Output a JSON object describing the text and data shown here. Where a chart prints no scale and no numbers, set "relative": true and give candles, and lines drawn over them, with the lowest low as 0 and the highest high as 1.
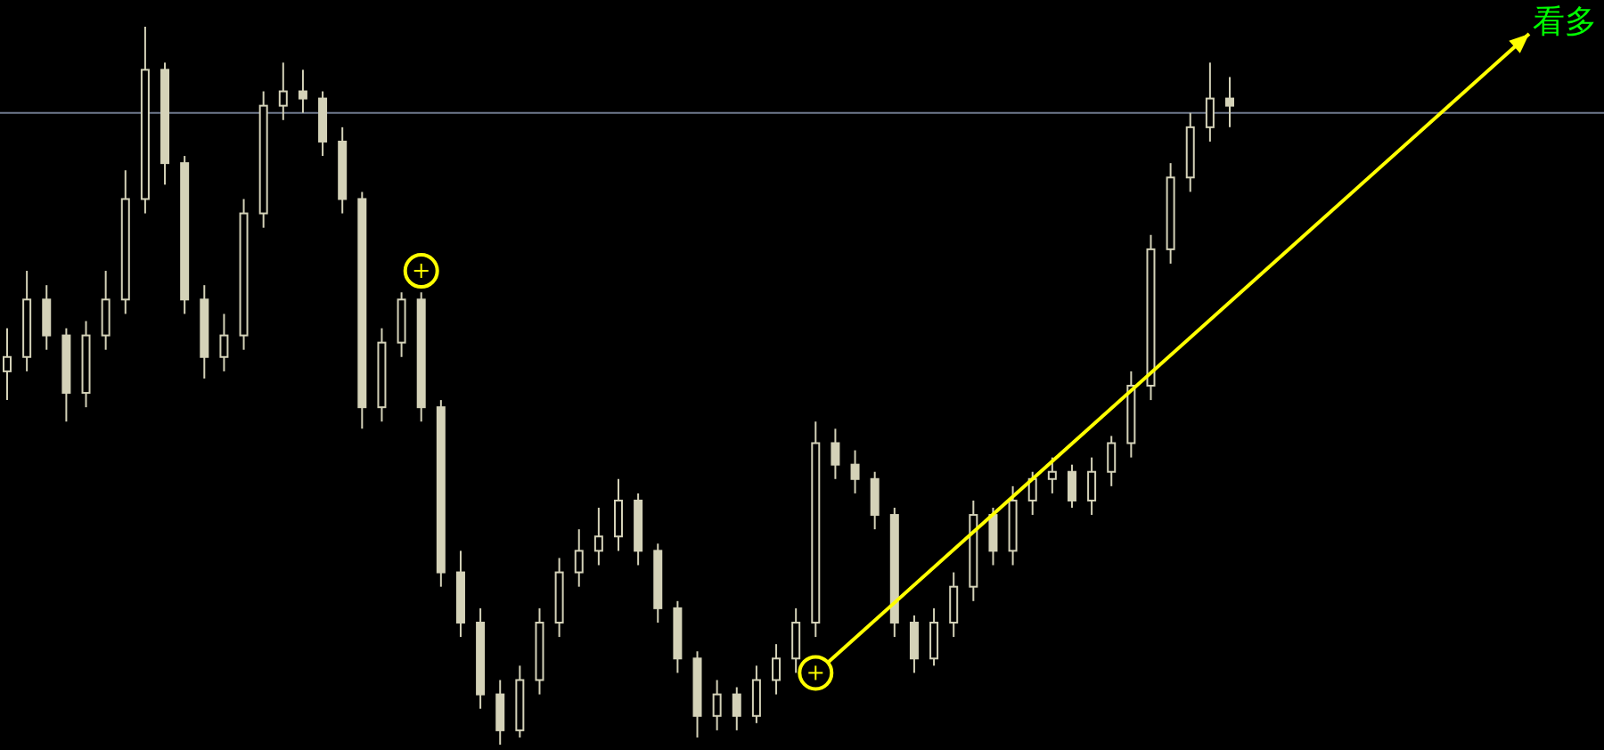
{
  "chart_data": {
    "type": "candlestick",
    "relative": true,
    "color": "#d4d2b8",
    "categories": [
      null,
      null,
      null,
      null,
      null,
      null,
      null,
      null,
      null,
      null,
      null,
      null,
      null,
      null,
      null,
      null,
      null,
      null,
      null,
      null,
      null,
      null,
      null,
      null,
      null,
      null,
      null,
      null,
      null,
      null,
      null,
      null,
      null,
      null,
      null,
      null,
      null,
      null,
      null,
      null,
      null,
      null,
      null,
      null,
      null,
      null,
      null,
      null,
      null,
      null,
      null,
      null,
      null,
      null,
      null,
      null,
      null,
      null,
      null,
      null,
      null,
      null,
      null
    ],
    "ohlc": [
      [
        0.52,
        0.58,
        0.48,
        0.54
      ],
      [
        0.54,
        0.66,
        0.52,
        0.62
      ],
      [
        0.62,
        0.64,
        0.55,
        0.57
      ],
      [
        0.57,
        0.58,
        0.45,
        0.49
      ],
      [
        0.49,
        0.59,
        0.47,
        0.57
      ],
      [
        0.57,
        0.66,
        0.55,
        0.62
      ],
      [
        0.62,
        0.8,
        0.6,
        0.76
      ],
      [
        0.76,
        1.0,
        0.74,
        0.94
      ],
      [
        0.94,
        0.95,
        0.78,
        0.81
      ],
      [
        0.81,
        0.82,
        0.6,
        0.62
      ],
      [
        0.62,
        0.64,
        0.51,
        0.54
      ],
      [
        0.54,
        0.6,
        0.52,
        0.57
      ],
      [
        0.57,
        0.76,
        0.55,
        0.74
      ],
      [
        0.74,
        0.91,
        0.72,
        0.89
      ],
      [
        0.89,
        0.95,
        0.87,
        0.91
      ],
      [
        0.91,
        0.94,
        0.88,
        0.9
      ],
      [
        0.9,
        0.91,
        0.82,
        0.84
      ],
      [
        0.84,
        0.86,
        0.74,
        0.76
      ],
      [
        0.76,
        0.77,
        0.44,
        0.47
      ],
      [
        0.47,
        0.58,
        0.45,
        0.56
      ],
      [
        0.56,
        0.63,
        0.54,
        0.62
      ],
      [
        0.62,
        0.63,
        0.45,
        0.47
      ],
      [
        0.47,
        0.48,
        0.22,
        0.24
      ],
      [
        0.24,
        0.27,
        0.15,
        0.17
      ],
      [
        0.17,
        0.19,
        0.05,
        0.07
      ],
      [
        0.07,
        0.09,
        0.0,
        0.02
      ],
      [
        0.02,
        0.11,
        0.01,
        0.09
      ],
      [
        0.09,
        0.19,
        0.07,
        0.17
      ],
      [
        0.17,
        0.26,
        0.15,
        0.24
      ],
      [
        0.24,
        0.3,
        0.22,
        0.27
      ],
      [
        0.27,
        0.33,
        0.25,
        0.29
      ],
      [
        0.29,
        0.37,
        0.27,
        0.34
      ],
      [
        0.34,
        0.35,
        0.25,
        0.27
      ],
      [
        0.27,
        0.28,
        0.17,
        0.19
      ],
      [
        0.19,
        0.2,
        0.1,
        0.12
      ],
      [
        0.12,
        0.13,
        0.01,
        0.04
      ],
      [
        0.04,
        0.09,
        0.02,
        0.07
      ],
      [
        0.07,
        0.08,
        0.02,
        0.04
      ],
      [
        0.04,
        0.11,
        0.03,
        0.09
      ],
      [
        0.09,
        0.14,
        0.07,
        0.12
      ],
      [
        0.12,
        0.19,
        0.1,
        0.17
      ],
      [
        0.17,
        0.45,
        0.15,
        0.42
      ],
      [
        0.42,
        0.44,
        0.37,
        0.39
      ],
      [
        0.39,
        0.41,
        0.35,
        0.37
      ],
      [
        0.37,
        0.38,
        0.3,
        0.32
      ],
      [
        0.32,
        0.33,
        0.15,
        0.17
      ],
      [
        0.17,
        0.18,
        0.1,
        0.12
      ],
      [
        0.12,
        0.19,
        0.11,
        0.17
      ],
      [
        0.17,
        0.24,
        0.15,
        0.22
      ],
      [
        0.22,
        0.34,
        0.2,
        0.32
      ],
      [
        0.32,
        0.33,
        0.25,
        0.27
      ],
      [
        0.27,
        0.36,
        0.25,
        0.34
      ],
      [
        0.34,
        0.38,
        0.32,
        0.37
      ],
      [
        0.37,
        0.4,
        0.35,
        0.38
      ],
      [
        0.38,
        0.39,
        0.33,
        0.34
      ],
      [
        0.34,
        0.4,
        0.32,
        0.38
      ],
      [
        0.38,
        0.43,
        0.36,
        0.42
      ],
      [
        0.42,
        0.52,
        0.4,
        0.5
      ],
      [
        0.5,
        0.71,
        0.48,
        0.69
      ],
      [
        0.69,
        0.81,
        0.67,
        0.79
      ],
      [
        0.79,
        0.88,
        0.77,
        0.86
      ],
      [
        0.86,
        0.95,
        0.84,
        0.9
      ],
      [
        0.9,
        0.93,
        0.86,
        0.89
      ]
    ],
    "series": [
      {
        "type": "scatter",
        "color": "#ffff00",
        "marker": "circle",
        "values": [
          null,
          null,
          null,
          null,
          null,
          null,
          null,
          null,
          null,
          null,
          null,
          null,
          null,
          null,
          null,
          null,
          null,
          null,
          null,
          null,
          null,
          0.66,
          null,
          null,
          null,
          null,
          null,
          null,
          null,
          null,
          null,
          null,
          null,
          null,
          null,
          null,
          null,
          null,
          null,
          null,
          null,
          0.1,
          null,
          null,
          null,
          null,
          null,
          null,
          null,
          null,
          null,
          null,
          null,
          null,
          null,
          null,
          null,
          null,
          null,
          null,
          null,
          null,
          null
        ]
      }
    ],
    "ref_lines": [
      {
        "axis": "y",
        "value": 0.88,
        "color": "#6f7a8e"
      }
    ],
    "annotations": [
      "看多"
    ]
  }
}
